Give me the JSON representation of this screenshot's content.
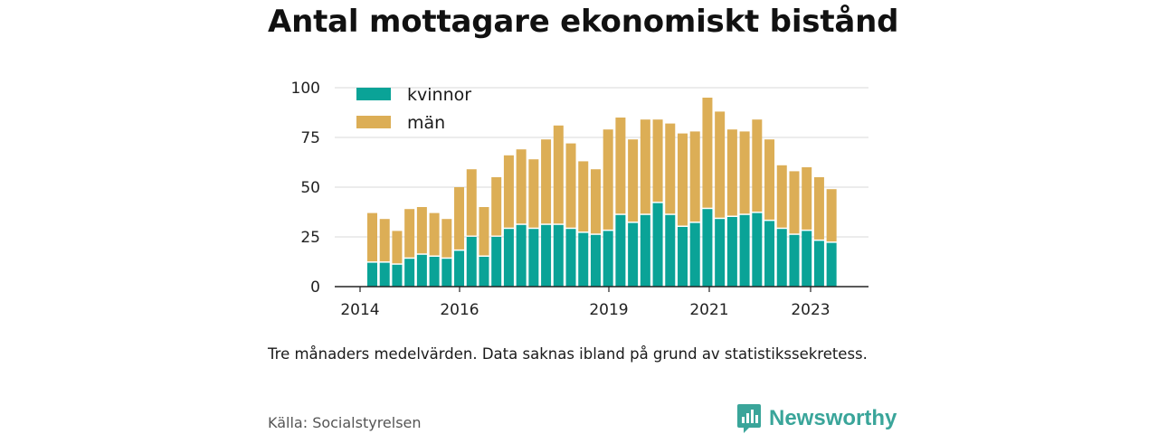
{
  "title": "Antal mottagare ekonomiskt bistånd",
  "note": "Tre månaders medelvärden. Data saknas ibland på grund av statistikssekretess.",
  "source": "Källa: Socialstyrelsen",
  "brand": {
    "name": "Newsworthy",
    "icon": "newsworthy-logo-icon",
    "color": "#3aa59a"
  },
  "colors": {
    "kvinnor": "#0aa397",
    "man": "#dcae56",
    "axis": "#222222",
    "grid": "#d9d9d9"
  },
  "chart_data": {
    "type": "bar",
    "stacked": true,
    "x_tick_labels": [
      "2014",
      "2016",
      "2019",
      "2021",
      "2023"
    ],
    "y_tick_labels": [
      "0",
      "25",
      "50",
      "75",
      "100"
    ],
    "ylim": [
      0,
      100
    ],
    "grid": true,
    "legend_placement": "top-left",
    "series": [
      {
        "name": "kvinnor",
        "values": [
          12,
          12,
          11,
          14,
          16,
          15,
          14,
          18,
          25,
          15,
          25,
          29,
          31,
          29,
          31,
          31,
          29,
          27,
          26,
          28,
          36,
          32,
          36,
          42,
          36,
          30,
          32,
          39,
          34,
          35,
          36,
          37,
          33,
          29,
          26,
          28,
          23,
          22
        ]
      },
      {
        "name": "män",
        "values": [
          25,
          22,
          17,
          25,
          24,
          22,
          20,
          32,
          34,
          25,
          30,
          37,
          38,
          35,
          43,
          50,
          43,
          36,
          33,
          51,
          49,
          42,
          48,
          42,
          46,
          47,
          46,
          56,
          54,
          44,
          42,
          47,
          41,
          32,
          32,
          32,
          32,
          27
        ]
      }
    ]
  }
}
